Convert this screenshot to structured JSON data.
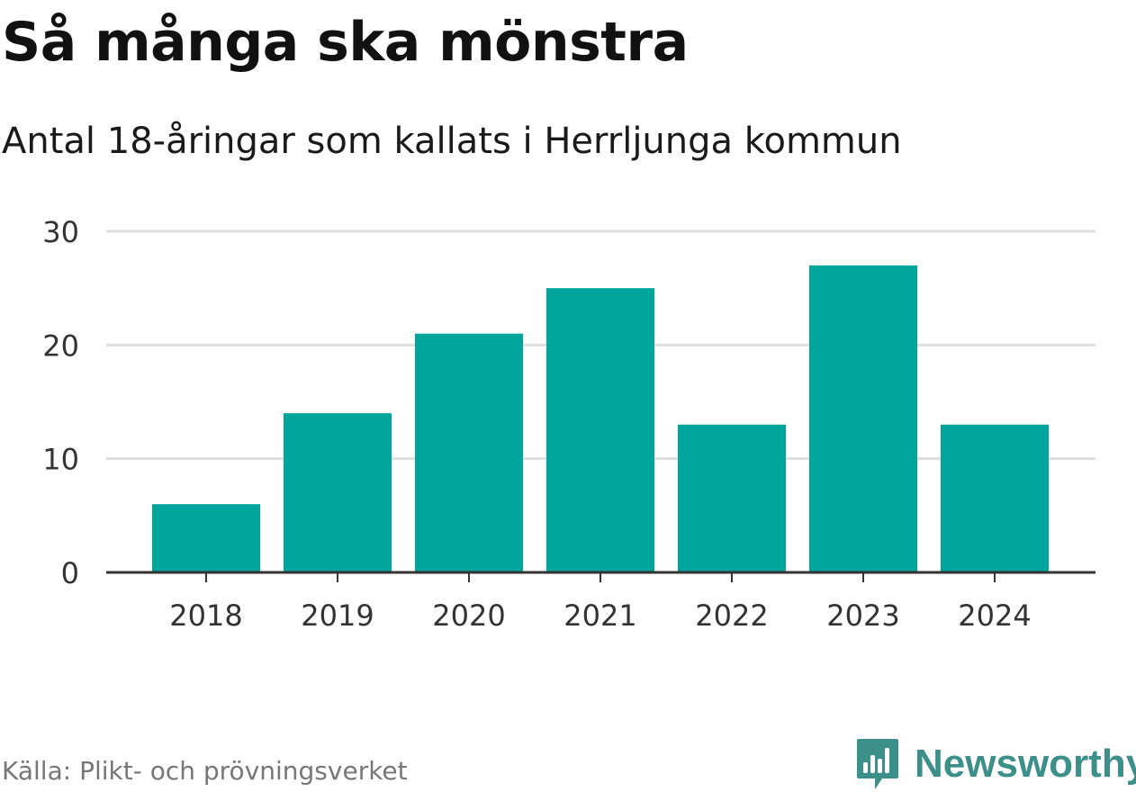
{
  "header": {
    "title": "Så många ska mönstra",
    "subtitle": "Antal 18-åringar som kallats i Herrljunga kommun"
  },
  "footer": {
    "source": "Källa: Plikt- och prövningsverket",
    "brand": "Newsworthy",
    "brand_icon": "bar-chart-speech-bubble-icon",
    "brand_color": "#3d8f8a"
  },
  "chart_data": {
    "type": "bar",
    "categories": [
      "2018",
      "2019",
      "2020",
      "2021",
      "2022",
      "2023",
      "2024"
    ],
    "values": [
      6,
      14,
      21,
      25,
      13,
      27,
      13
    ],
    "ylim": [
      0,
      30
    ],
    "yticks": [
      "0",
      "10",
      "20",
      "30"
    ],
    "xlabel": "",
    "ylabel": "",
    "bar_color": "#00a59b",
    "grid": true,
    "legend": "none"
  }
}
